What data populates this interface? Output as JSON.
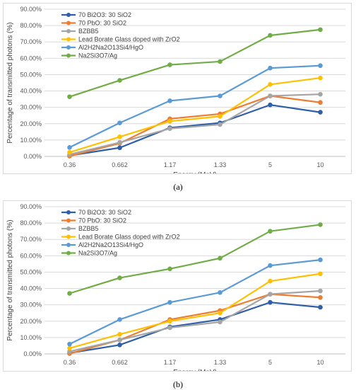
{
  "captions": [
    "(a)",
    "(b)"
  ],
  "chart_data": [
    {
      "type": "line",
      "xlabel": "Energy (MeV)",
      "ylabel": "Percentage of transmitted photons (%)",
      "categories": [
        "0.36",
        "0.662",
        "1.17",
        "1.33",
        "5",
        "10"
      ],
      "ylim": [
        0,
        90
      ],
      "yticks": [
        "0.00%",
        "10.00%",
        "20.00%",
        "30.00%",
        "40.00%",
        "50.00%",
        "60.00%",
        "70.00%",
        "80.00%",
        "90.00%"
      ],
      "grid": true,
      "legend": "top-left",
      "series": [
        {
          "name": "70 Bi2O3: 30 SiO2",
          "color": "#2e5fa8",
          "values": [
            0.5,
            5.3,
            17.5,
            20.5,
            31.5,
            27.0
          ]
        },
        {
          "name": "70 PbO: 30 SiO2",
          "color": "#ed7d31",
          "values": [
            0.2,
            8.0,
            23.0,
            26.0,
            37.0,
            33.0
          ]
        },
        {
          "name": "BZBB5",
          "color": "#a5a5a5",
          "values": [
            1.2,
            8.5,
            17.0,
            19.5,
            37.0,
            38.0
          ]
        },
        {
          "name": "Lead Borate Glass doped with ZrO2",
          "color": "#ffc000",
          "values": [
            2.5,
            12.0,
            21.5,
            24.5,
            44.0,
            48.0
          ]
        },
        {
          "name": "Al2H2Na2O13Si4/HgO",
          "color": "#5b9bd5",
          "values": [
            5.5,
            20.5,
            34.0,
            37.0,
            54.0,
            55.5
          ]
        },
        {
          "name": "Na2Si3O7/Ag",
          "color": "#70ad47",
          "values": [
            36.5,
            46.5,
            56.0,
            58.0,
            74.0,
            77.5
          ]
        }
      ]
    },
    {
      "type": "line",
      "xlabel": "Energy (MeV)",
      "ylabel": "Percentage of transmitted photons (%)",
      "categories": [
        "0.36",
        "0.662",
        "1.17",
        "1.33",
        "5",
        "10"
      ],
      "ylim": [
        0,
        90
      ],
      "yticks": [
        "0.00%",
        "10.00%",
        "20.00%",
        "30.00%",
        "40.00%",
        "50.00%",
        "60.00%",
        "70.00%",
        "80.00%",
        "90.00%"
      ],
      "grid": true,
      "legend": "top-left",
      "series": [
        {
          "name": "70 Bi2O3: 30 SiO2",
          "color": "#2e5fa8",
          "values": [
            0.5,
            5.5,
            16.5,
            21.0,
            31.5,
            28.5
          ]
        },
        {
          "name": "70 PbO: 30 SiO2",
          "color": "#ed7d31",
          "values": [
            0.2,
            8.5,
            21.0,
            26.5,
            36.5,
            34.5
          ]
        },
        {
          "name": "BZBB5",
          "color": "#a5a5a5",
          "values": [
            1.5,
            8.5,
            16.0,
            19.5,
            36.5,
            38.5
          ]
        },
        {
          "name": "Lead Borate Glass doped with ZrO2",
          "color": "#ffc000",
          "values": [
            3.5,
            12.0,
            20.0,
            25.0,
            44.5,
            49.0
          ]
        },
        {
          "name": "Al2H2Na2O13Si4/HgO",
          "color": "#5b9bd5",
          "values": [
            6.0,
            21.0,
            31.5,
            37.5,
            54.0,
            57.5
          ]
        },
        {
          "name": "Na2Si3O7/Ag",
          "color": "#70ad47",
          "values": [
            37.0,
            46.5,
            52.0,
            58.5,
            75.0,
            79.0
          ]
        }
      ]
    }
  ]
}
